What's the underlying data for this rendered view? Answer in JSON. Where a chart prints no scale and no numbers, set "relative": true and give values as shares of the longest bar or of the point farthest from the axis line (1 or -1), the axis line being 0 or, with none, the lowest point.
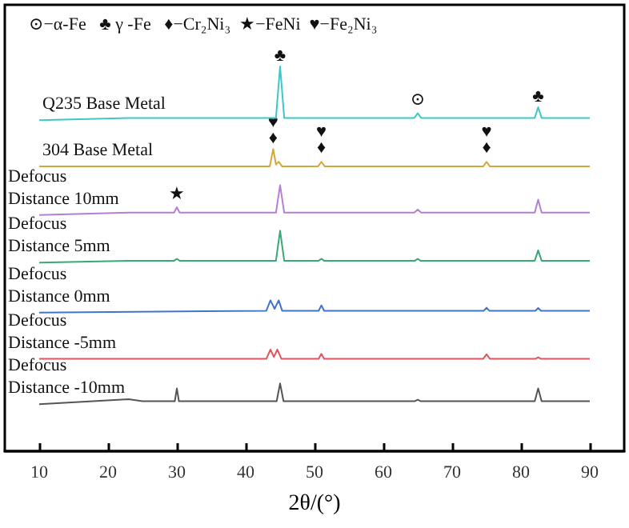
{
  "chart_data": {
    "type": "line",
    "relative": true,
    "xlabel": "2θ/(°)",
    "xlim": [
      5,
      95
    ],
    "xticks": [
      10,
      20,
      30,
      40,
      50,
      60,
      70,
      80,
      90
    ],
    "tick_labels": "x",
    "marker": "none",
    "series": [
      {
        "name": "Q235 Base Metal",
        "color": "#3cc8c8",
        "x": [
          10,
          23,
          40,
          44.4,
          45,
          45.6,
          64.5,
          65,
          65.5,
          82,
          82.5,
          83,
          90
        ],
        "values": [
          0.86,
          0.866,
          0.866,
          0.866,
          1.0,
          0.866,
          0.866,
          0.878,
          0.866,
          0.866,
          0.894,
          0.866,
          0.866
        ]
      },
      {
        "name": "304 Base Metal",
        "color": "#d4a838",
        "x": [
          10,
          43.5,
          44,
          44.4,
          44.8,
          45.3,
          50.5,
          51,
          51.5,
          74.5,
          75,
          75.5,
          90
        ],
        "values": [
          0.74,
          0.74,
          0.785,
          0.745,
          0.752,
          0.74,
          0.74,
          0.752,
          0.74,
          0.74,
          0.752,
          0.74,
          0.74
        ]
      },
      {
        "name": "Defocus Distance 10mm",
        "color": "#b57fd6",
        "x": [
          10,
          23,
          29.6,
          30,
          30.4,
          44.4,
          45,
          45.6,
          64.5,
          65,
          65.5,
          82,
          82.5,
          83,
          90
        ],
        "values": [
          0.614,
          0.62,
          0.62,
          0.634,
          0.62,
          0.62,
          0.691,
          0.62,
          0.62,
          0.628,
          0.62,
          0.62,
          0.654,
          0.62,
          0.62
        ]
      },
      {
        "name": "Defocus Distance 5mm",
        "color": "#3aa874",
        "x": [
          10,
          23,
          29.6,
          30,
          30.4,
          44.4,
          45,
          45.6,
          50.6,
          51,
          51.4,
          64.6,
          65,
          65.4,
          82,
          82.5,
          83,
          90
        ],
        "values": [
          0.49,
          0.495,
          0.495,
          0.5,
          0.495,
          0.495,
          0.573,
          0.495,
          0.495,
          0.5,
          0.495,
          0.495,
          0.5,
          0.495,
          0.495,
          0.522,
          0.495,
          0.495
        ]
      },
      {
        "name": "Defocus Distance 0mm",
        "color": "#3f74c9",
        "x": [
          10,
          43,
          43.6,
          44.2,
          44.8,
          45.3,
          50.6,
          51,
          51.4,
          74.6,
          75,
          75.4,
          82.1,
          82.5,
          82.9,
          90
        ],
        "values": [
          0.36,
          0.365,
          0.392,
          0.37,
          0.392,
          0.365,
          0.365,
          0.379,
          0.365,
          0.365,
          0.373,
          0.365,
          0.365,
          0.372,
          0.365,
          0.365
        ]
      },
      {
        "name": "Defocus Distance -5mm",
        "color": "#e0555f",
        "x": [
          10,
          43,
          43.6,
          44.1,
          44.6,
          45.2,
          50.6,
          51,
          51.4,
          74.5,
          75,
          75.5,
          82.1,
          82.5,
          82.9,
          90
        ],
        "values": [
          0.24,
          0.24,
          0.264,
          0.245,
          0.264,
          0.24,
          0.24,
          0.253,
          0.24,
          0.24,
          0.252,
          0.24,
          0.24,
          0.244,
          0.24,
          0.24
        ]
      },
      {
        "name": "Defocus Distance -10mm",
        "color": "#555555",
        "x": [
          10,
          23,
          25,
          29.7,
          30,
          30.3,
          44.5,
          45,
          45.5,
          64.6,
          65,
          65.4,
          82,
          82.5,
          83,
          90
        ],
        "values": [
          0.122,
          0.135,
          0.13,
          0.13,
          0.163,
          0.13,
          0.13,
          0.176,
          0.13,
          0.13,
          0.134,
          0.13,
          0.13,
          0.163,
          0.13,
          0.13
        ]
      }
    ],
    "annotations": [
      "⊙−α-Fe   ♣ γ -Fe   ♦−Cr₂Ni₃  ★−FeNi  ♥−Fe₂Ni₃",
      {
        "text": "♣",
        "x": 45,
        "y": 1.0
      },
      {
        "text": "⊙",
        "x": 65,
        "y": 0.885
      },
      {
        "text": "♣",
        "x": 82.5,
        "y": 0.894
      },
      {
        "text": "♦",
        "x": 44,
        "y": 0.785
      },
      {
        "text": "♥",
        "x": 44,
        "y": 0.785
      },
      {
        "text": "♦",
        "x": 51,
        "y": 0.76
      },
      {
        "text": "♥",
        "x": 51,
        "y": 0.76
      },
      {
        "text": "♦",
        "x": 75,
        "y": 0.76
      },
      {
        "text": "♥",
        "x": 75,
        "y": 0.76
      },
      {
        "text": "★",
        "x": 30,
        "y": 0.64
      }
    ]
  }
}
